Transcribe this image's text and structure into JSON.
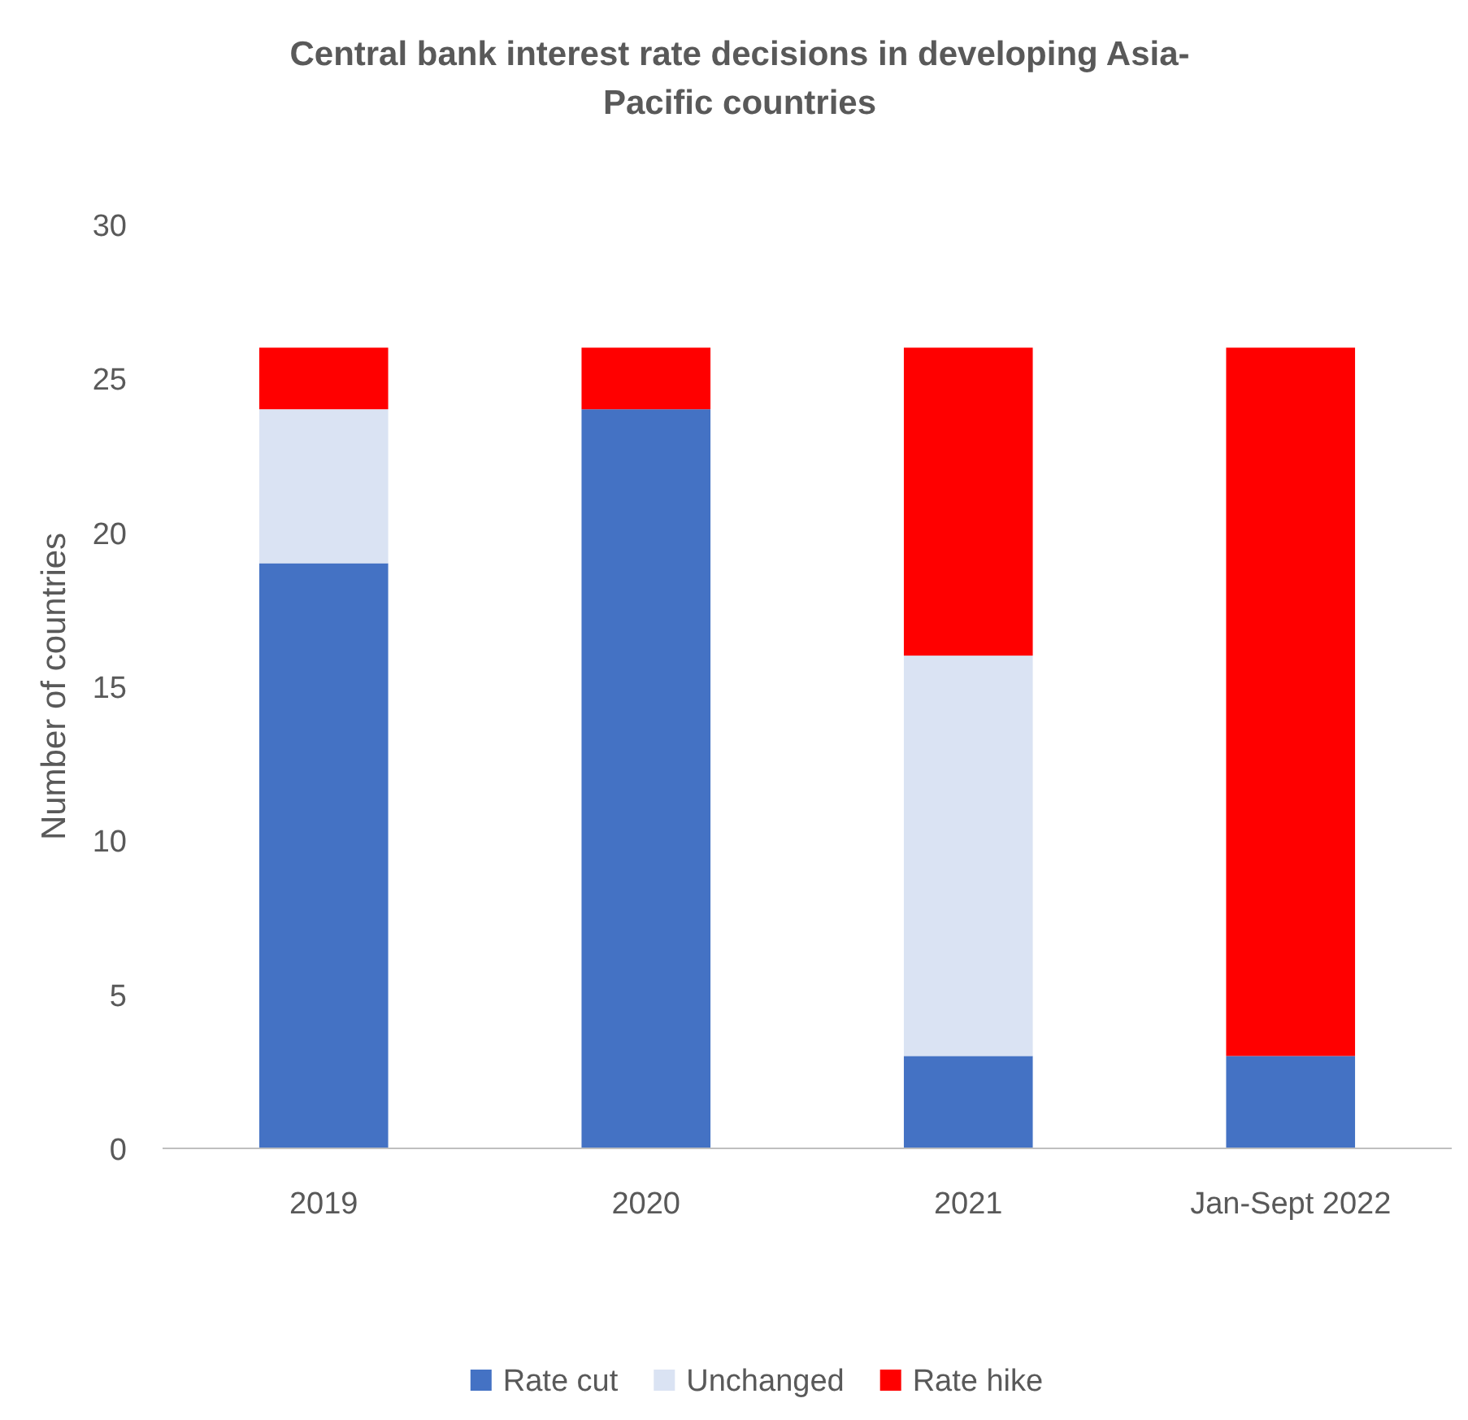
{
  "chart_data": {
    "type": "bar",
    "title": "Central bank interest rate decisions in developing Asia-Pacific countries",
    "ylabel": "Number of countries",
    "categories": [
      "2019",
      "2020",
      "2021",
      "Jan-Sept 2022"
    ],
    "stacked": true,
    "series": [
      {
        "name": "Rate cut",
        "color": "#4472c4",
        "values": [
          19,
          24,
          3,
          3
        ]
      },
      {
        "name": "Unchanged",
        "color": "#dae3f3",
        "values": [
          5,
          0,
          13,
          0
        ]
      },
      {
        "name": "Rate hike",
        "color": "#ff0000",
        "values": [
          2,
          2,
          10,
          23
        ]
      }
    ],
    "ylim": [
      0,
      30
    ],
    "yticks": [
      0,
      5,
      10,
      15,
      20,
      25,
      30
    ],
    "grid": false,
    "legend": "bottom"
  }
}
